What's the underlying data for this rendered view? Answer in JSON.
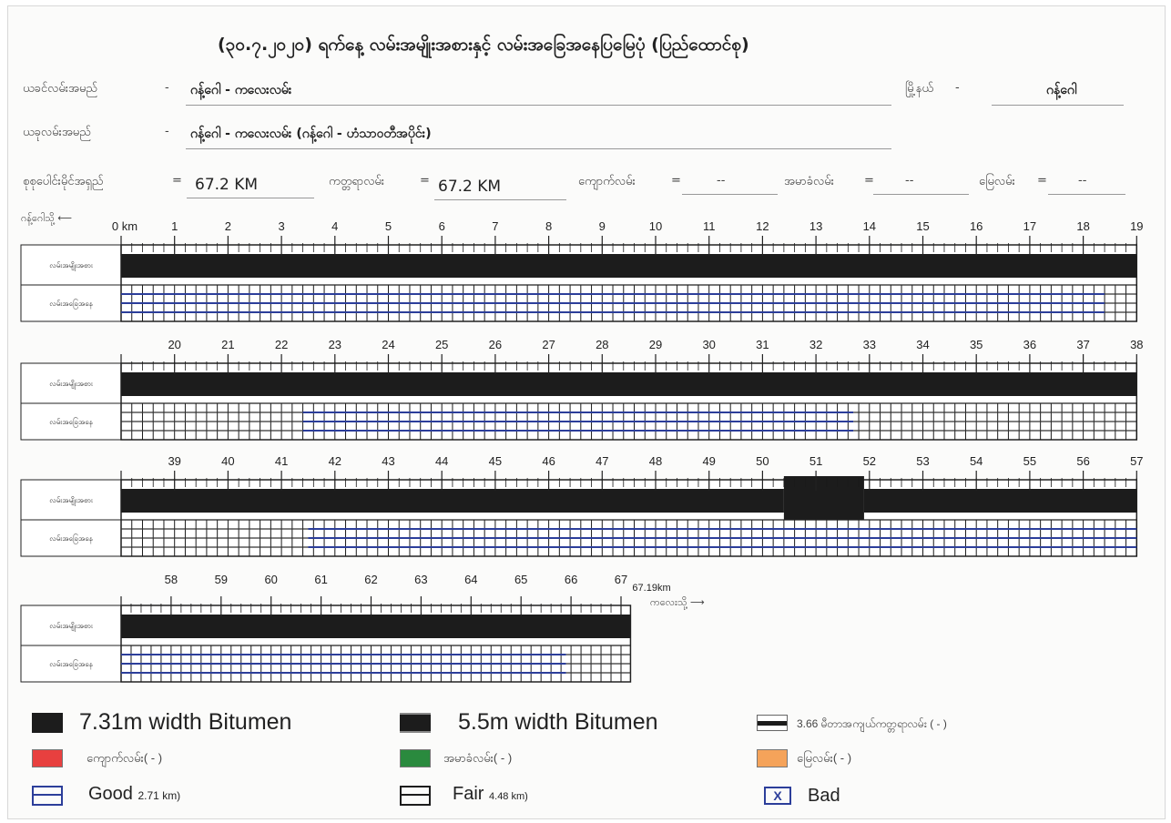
{
  "header": {
    "title": "(၃၀.၇.၂၀၂၀) ရက်နေ့ လမ်းအမျိုးအစားနှင့် လမ်းအခြေအနေပြမြေပုံ (ပြည်ထောင်စု)",
    "road_name_label": "ယခင်လမ်းအမည်",
    "road_name_value": "ဂန့်ဂေါ - ကလေးလမ်း",
    "city_label": "မြို့နယ်",
    "city_value": "ဂန့်ဂေါ",
    "new_road_name_label": "ယခုလမ်းအမည်",
    "new_road_name_value": "ဂန့်ဂေါ - ကလေးလမ်း (ဂန့်ဂေါ - ဟံသာဝတီအပိုင်း)",
    "total_length_label": "စုစုပေါင်းမိုင်အရှည်",
    "total_length_value": "67.2 KM",
    "bitumen_label": "ကတ္တရာလမ်း",
    "bitumen_value": "67.2 KM",
    "gravel_label": "ကျောက်လမ်း",
    "gravel_value": "--",
    "earth_label": "အမာခံလမ်း",
    "earth_value": "--",
    "soil_label": "မြေလမ်း",
    "soil_value": "--",
    "start_label": "ဂန့်ဂေါသို့",
    "end_label": "ကလေးသို့"
  },
  "row_labels": {
    "type": "လမ်းအမျိုးအစား",
    "condition": "လမ်းအခြေအနေ"
  },
  "chart_data": {
    "type": "table",
    "total_km": 67.19,
    "end_label": "67.19km",
    "start_tick_label": "0 km",
    "rows": [
      {
        "start": 0,
        "end": 19
      },
      {
        "start": 19,
        "end": 38
      },
      {
        "start": 38,
        "end": 57
      },
      {
        "start": 57,
        "end": 67.19
      }
    ],
    "road_type_segments": [
      {
        "from": 0,
        "to": 50.4,
        "type": "5.5m"
      },
      {
        "from": 50.4,
        "to": 51.9,
        "type": "7.31m"
      },
      {
        "from": 51.9,
        "to": 67.19,
        "type": "5.5m"
      }
    ],
    "condition_segments": [
      {
        "from": 0,
        "to": 18.4,
        "condition": "Good"
      },
      {
        "from": 18.4,
        "to": 22.4,
        "condition": "Fair"
      },
      {
        "from": 22.4,
        "to": 32.7,
        "condition": "Good"
      },
      {
        "from": 32.7,
        "to": 41.5,
        "condition": "Fair"
      },
      {
        "from": 41.5,
        "to": 65.9,
        "condition": "Good"
      },
      {
        "from": 65.9,
        "to": 67.19,
        "condition": "Fair"
      }
    ],
    "colors": {
      "bitumen": "#1c1c1c",
      "good_line": "#2c3e9a",
      "grid": "#1a1a1a"
    }
  },
  "legend": {
    "items": [
      {
        "id": "bitumen731",
        "text": "7.31m width Bitumen",
        "color": "#1c1c1c"
      },
      {
        "id": "bitumen55",
        "text": "5.5m width Bitumen",
        "color": "#1c1c1c"
      },
      {
        "id": "bitumen366",
        "text": "3.66 မီတာအကျယ်ကတ္တရာလမ်း ( - )",
        "color": "#1c1c1c"
      },
      {
        "id": "gravel",
        "text": "ကျောက်လမ်း( - )",
        "color": "#e8403f"
      },
      {
        "id": "earth",
        "text": "အမာခံလမ်း( - )",
        "color": "#2a8a3e"
      },
      {
        "id": "soil",
        "text": "မြေလမ်း( - )",
        "color": "#f5a35a"
      },
      {
        "id": "good",
        "text": "Good",
        "sub": "2.71 km)",
        "color": "#2c3e9a"
      },
      {
        "id": "fair",
        "text": "Fair",
        "sub": "4.48 km)",
        "color": "#1c1c1c"
      },
      {
        "id": "bad",
        "text": "Bad",
        "mark": "X",
        "color": "#2c3e9a"
      }
    ]
  }
}
